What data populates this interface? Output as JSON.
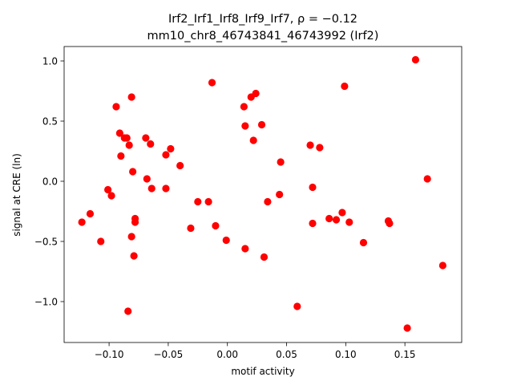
{
  "chart_data": {
    "type": "scatter",
    "title_line1": "Irf2_Irf1_Irf8_Irf9_Irf7, ρ = −0.12",
    "title_line2": "mm10_chr8_46743841_46743992 (Irf2)",
    "xlabel": "motif activity",
    "ylabel": "signal at CRE (ln)",
    "xlim": [
      -0.138,
      0.198
    ],
    "ylim": [
      -1.34,
      1.12
    ],
    "xticks": [
      {
        "value": -0.1,
        "label": "−0.10"
      },
      {
        "value": -0.05,
        "label": "−0.05"
      },
      {
        "value": 0.0,
        "label": "0.00"
      },
      {
        "value": 0.05,
        "label": "0.05"
      },
      {
        "value": 0.1,
        "label": "0.10"
      },
      {
        "value": 0.15,
        "label": "0.15"
      }
    ],
    "yticks": [
      {
        "value": -1.0,
        "label": "−1.0"
      },
      {
        "value": -0.5,
        "label": "−0.5"
      },
      {
        "value": 0.0,
        "label": "0.0"
      },
      {
        "value": 0.5,
        "label": "0.5"
      },
      {
        "value": 1.0,
        "label": "1.0"
      }
    ],
    "marker_color": "#ff0000",
    "grid": false,
    "points": [
      {
        "x": -0.123,
        "y": -0.34
      },
      {
        "x": -0.116,
        "y": -0.27
      },
      {
        "x": -0.107,
        "y": -0.5
      },
      {
        "x": -0.101,
        "y": -0.07
      },
      {
        "x": -0.098,
        "y": -0.12
      },
      {
        "x": -0.094,
        "y": 0.62
      },
      {
        "x": -0.091,
        "y": 0.4
      },
      {
        "x": -0.09,
        "y": 0.21
      },
      {
        "x": -0.087,
        "y": 0.36
      },
      {
        "x": -0.085,
        "y": 0.36
      },
      {
        "x": -0.084,
        "y": -1.08
      },
      {
        "x": -0.083,
        "y": 0.3
      },
      {
        "x": -0.081,
        "y": 0.7
      },
      {
        "x": -0.081,
        "y": -0.46
      },
      {
        "x": -0.08,
        "y": 0.08
      },
      {
        "x": -0.079,
        "y": -0.62
      },
      {
        "x": -0.078,
        "y": -0.31
      },
      {
        "x": -0.078,
        "y": -0.34
      },
      {
        "x": -0.069,
        "y": 0.36
      },
      {
        "x": -0.068,
        "y": 0.02
      },
      {
        "x": -0.065,
        "y": 0.31
      },
      {
        "x": -0.064,
        "y": -0.06
      },
      {
        "x": -0.052,
        "y": 0.22
      },
      {
        "x": -0.052,
        "y": -0.06
      },
      {
        "x": -0.048,
        "y": 0.27
      },
      {
        "x": -0.04,
        "y": 0.13
      },
      {
        "x": -0.031,
        "y": -0.39
      },
      {
        "x": -0.025,
        "y": -0.17
      },
      {
        "x": -0.016,
        "y": -0.17
      },
      {
        "x": -0.013,
        "y": 0.82
      },
      {
        "x": -0.01,
        "y": -0.37
      },
      {
        "x": -0.001,
        "y": -0.49
      },
      {
        "x": 0.014,
        "y": 0.62
      },
      {
        "x": 0.015,
        "y": 0.46
      },
      {
        "x": 0.015,
        "y": -0.56
      },
      {
        "x": 0.02,
        "y": 0.7
      },
      {
        "x": 0.022,
        "y": 0.34
      },
      {
        "x": 0.024,
        "y": 0.73
      },
      {
        "x": 0.029,
        "y": 0.47
      },
      {
        "x": 0.031,
        "y": -0.63
      },
      {
        "x": 0.034,
        "y": -0.17
      },
      {
        "x": 0.044,
        "y": -0.11
      },
      {
        "x": 0.045,
        "y": 0.16
      },
      {
        "x": 0.059,
        "y": -1.04
      },
      {
        "x": 0.07,
        "y": 0.3
      },
      {
        "x": 0.072,
        "y": -0.35
      },
      {
        "x": 0.072,
        "y": -0.05
      },
      {
        "x": 0.078,
        "y": 0.28
      },
      {
        "x": 0.086,
        "y": -0.31
      },
      {
        "x": 0.092,
        "y": -0.32
      },
      {
        "x": 0.097,
        "y": -0.26
      },
      {
        "x": 0.099,
        "y": 0.79
      },
      {
        "x": 0.103,
        "y": -0.34
      },
      {
        "x": 0.115,
        "y": -0.51
      },
      {
        "x": 0.136,
        "y": -0.33
      },
      {
        "x": 0.137,
        "y": -0.35
      },
      {
        "x": 0.152,
        "y": -1.22
      },
      {
        "x": 0.159,
        "y": 1.01
      },
      {
        "x": 0.169,
        "y": 0.02
      },
      {
        "x": 0.182,
        "y": -0.7
      }
    ]
  }
}
